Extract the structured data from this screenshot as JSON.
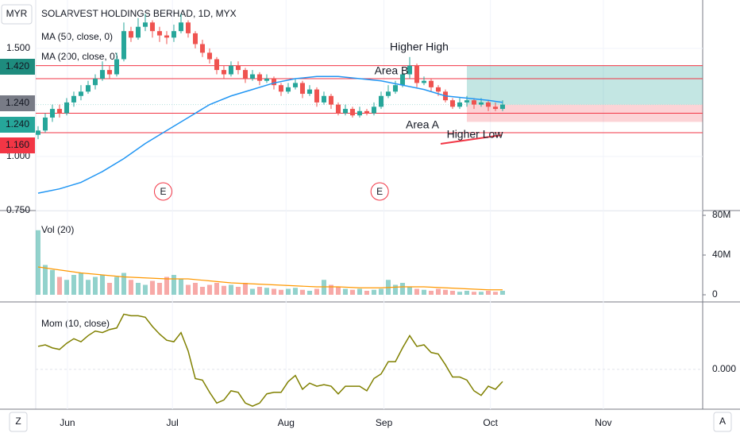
{
  "ui": {
    "currency": "MYR",
    "left_button": "Z",
    "right_button": "A"
  },
  "chart_data": [
    {
      "type": "candlestick",
      "title": "SOLARVEST HOLDINGS BERHAD, 1D, MYX",
      "indicators": [
        "MA (50, close, 0)",
        "MA (200, close, 0)"
      ],
      "up_color": "#26a69a",
      "down_color": "#ef5350",
      "open": [
        1.1,
        1.12,
        1.18,
        1.22,
        1.2,
        1.25,
        1.28,
        1.3,
        1.33,
        1.36,
        1.4,
        1.38,
        1.45,
        1.58,
        1.55,
        1.6,
        1.62,
        1.58,
        1.56,
        1.55,
        1.58,
        1.62,
        1.57,
        1.52,
        1.48,
        1.45,
        1.4,
        1.38,
        1.42,
        1.4,
        1.36,
        1.38,
        1.35,
        1.36,
        1.33,
        1.3,
        1.32,
        1.34,
        1.29,
        1.31,
        1.25,
        1.28,
        1.24,
        1.2,
        1.22,
        1.19,
        1.21,
        1.2,
        1.23,
        1.28,
        1.3,
        1.33,
        1.38,
        1.42,
        1.34,
        1.35,
        1.32,
        1.3,
        1.26,
        1.23,
        1.25,
        1.26,
        1.24,
        1.25,
        1.23,
        1.22
      ],
      "high": [
        1.14,
        1.2,
        1.24,
        1.24,
        1.27,
        1.3,
        1.33,
        1.35,
        1.38,
        1.44,
        1.42,
        1.48,
        1.62,
        1.6,
        1.64,
        1.66,
        1.63,
        1.6,
        1.58,
        1.61,
        1.66,
        1.63,
        1.58,
        1.54,
        1.5,
        1.46,
        1.42,
        1.44,
        1.44,
        1.41,
        1.4,
        1.39,
        1.38,
        1.37,
        1.34,
        1.34,
        1.36,
        1.35,
        1.33,
        1.32,
        1.3,
        1.29,
        1.25,
        1.24,
        1.23,
        1.23,
        1.22,
        1.25,
        1.3,
        1.33,
        1.35,
        1.4,
        1.46,
        1.43,
        1.37,
        1.36,
        1.33,
        1.31,
        1.27,
        1.27,
        1.28,
        1.27,
        1.27,
        1.26,
        1.25,
        1.26
      ],
      "low": [
        1.08,
        1.11,
        1.16,
        1.18,
        1.19,
        1.23,
        1.26,
        1.29,
        1.31,
        1.35,
        1.36,
        1.37,
        1.44,
        1.53,
        1.54,
        1.58,
        1.55,
        1.53,
        1.52,
        1.53,
        1.57,
        1.55,
        1.5,
        1.46,
        1.43,
        1.38,
        1.36,
        1.37,
        1.38,
        1.34,
        1.35,
        1.33,
        1.34,
        1.31,
        1.28,
        1.29,
        1.31,
        1.27,
        1.28,
        1.23,
        1.24,
        1.22,
        1.19,
        1.19,
        1.18,
        1.18,
        1.19,
        1.19,
        1.22,
        1.27,
        1.29,
        1.32,
        1.36,
        1.32,
        1.33,
        1.3,
        1.28,
        1.25,
        1.22,
        1.22,
        1.23,
        1.22,
        1.23,
        1.21,
        1.21,
        1.21
      ],
      "close": [
        1.12,
        1.18,
        1.22,
        1.2,
        1.25,
        1.28,
        1.3,
        1.33,
        1.36,
        1.4,
        1.38,
        1.45,
        1.58,
        1.55,
        1.6,
        1.62,
        1.58,
        1.56,
        1.55,
        1.58,
        1.62,
        1.57,
        1.52,
        1.48,
        1.45,
        1.4,
        1.38,
        1.42,
        1.4,
        1.36,
        1.38,
        1.35,
        1.36,
        1.33,
        1.3,
        1.32,
        1.34,
        1.29,
        1.31,
        1.25,
        1.28,
        1.24,
        1.2,
        1.22,
        1.19,
        1.21,
        1.2,
        1.23,
        1.28,
        1.3,
        1.33,
        1.38,
        1.42,
        1.34,
        1.35,
        1.32,
        1.3,
        1.26,
        1.23,
        1.25,
        1.26,
        1.24,
        1.25,
        1.23,
        1.22,
        1.24
      ],
      "ma": {
        "color": "#2196f3",
        "x": [
          0,
          3,
          6,
          9,
          12,
          15,
          18,
          21,
          24,
          27,
          30,
          33,
          36,
          39,
          42,
          45,
          48,
          51,
          54,
          57,
          60,
          63,
          65
        ],
        "values": [
          0.83,
          0.85,
          0.88,
          0.93,
          0.99,
          1.06,
          1.12,
          1.18,
          1.24,
          1.28,
          1.31,
          1.34,
          1.36,
          1.37,
          1.37,
          1.36,
          1.35,
          1.33,
          1.31,
          1.28,
          1.27,
          1.26,
          1.25
        ]
      },
      "xlim": [
        -0.33,
        93
      ],
      "xticks": [
        {
          "value": 4.1,
          "label": "Jun"
        },
        {
          "value": 18.8,
          "label": "Jul"
        },
        {
          "value": 34.7,
          "label": "Aug"
        },
        {
          "value": 48.4,
          "label": "Sep"
        },
        {
          "value": 63.3,
          "label": "Oct"
        },
        {
          "value": 79.1,
          "label": "Nov"
        }
      ],
      "ylim": [
        0.757,
        1.724
      ],
      "yticks": [
        {
          "value": 1.5,
          "label": "1.500"
        },
        {
          "value": 1.0,
          "label": "1.000"
        },
        {
          "value": 0.75,
          "label": "0.750"
        }
      ],
      "levels": [
        1.42,
        1.36,
        1.2,
        1.11
      ],
      "position": {
        "start": 60,
        "target": 1.42,
        "entry": 1.24,
        "stop": 1.16
      },
      "price_labels": [
        {
          "value": 1.42,
          "label": "1.420",
          "color": "#1e8c7e"
        },
        {
          "value": 1.24,
          "label": "1.240",
          "color": "#787b86"
        },
        {
          "value": 1.24,
          "label": "1.240",
          "color": "#26a69a"
        },
        {
          "value": 1.16,
          "label": "1.160",
          "color": "#f23645"
        }
      ],
      "events": [
        {
          "x": 17.5,
          "label": "E"
        },
        {
          "x": 47.8,
          "label": "E"
        }
      ],
      "annotations": [
        "Higher High",
        "Area B",
        "Area A",
        "Higher Low"
      ]
    },
    {
      "type": "bar",
      "title": "Vol (20)",
      "ylim": [
        -7.2,
        84.8
      ],
      "yticks": [
        0,
        {
          "value": 40,
          "label": "40M"
        },
        {
          "value": 80,
          "label": "80M"
        }
      ],
      "values": [
        65,
        30,
        25,
        18,
        15,
        20,
        22,
        15,
        18,
        20,
        12,
        18,
        22,
        15,
        12,
        10,
        14,
        12,
        18,
        20,
        16,
        10,
        12,
        8,
        10,
        12,
        9,
        10,
        8,
        12,
        6,
        8,
        7,
        6,
        5,
        6,
        7,
        5,
        4,
        6,
        15,
        10,
        8,
        6,
        5,
        6,
        4,
        5,
        6,
        15,
        10,
        12,
        8,
        6,
        5,
        4,
        6,
        5,
        4,
        3,
        4,
        3,
        3,
        4,
        3,
        4
      ],
      "ma": {
        "color": "#ff9800",
        "x": [
          0,
          3,
          6,
          9,
          12,
          15,
          18,
          21,
          24,
          27,
          30,
          33,
          36,
          39,
          42,
          45,
          48,
          51,
          54,
          57,
          60,
          63,
          65
        ],
        "values": [
          28,
          25,
          22,
          20,
          18,
          17,
          16,
          16,
          14,
          12,
          11,
          10,
          9,
          8,
          8,
          7,
          7,
          8,
          8,
          7,
          6,
          5,
          5
        ]
      }
    },
    {
      "type": "line",
      "title": "Mom (10, close)",
      "color": "#808000",
      "ylim": [
        -0.26,
        0.44
      ],
      "yticks": [
        {
          "value": 0,
          "label": "0.000"
        }
      ],
      "values": [
        0.15,
        0.16,
        0.14,
        0.13,
        0.17,
        0.2,
        0.18,
        0.22,
        0.25,
        0.24,
        0.26,
        0.27,
        0.36,
        0.35,
        0.35,
        0.34,
        0.28,
        0.23,
        0.19,
        0.18,
        0.24,
        0.12,
        -0.06,
        -0.07,
        -0.15,
        -0.22,
        -0.2,
        -0.14,
        -0.15,
        -0.22,
        -0.24,
        -0.22,
        -0.16,
        -0.15,
        -0.15,
        -0.08,
        -0.04,
        -0.13,
        -0.09,
        -0.11,
        -0.1,
        -0.11,
        -0.16,
        -0.11,
        -0.11,
        -0.11,
        -0.14,
        -0.06,
        -0.03,
        0.05,
        0.05,
        0.14,
        0.22,
        0.15,
        0.16,
        0.11,
        0.1,
        0.03,
        -0.05,
        -0.05,
        -0.07,
        -0.14,
        -0.17,
        -0.11,
        -0.13,
        -0.08
      ]
    }
  ]
}
